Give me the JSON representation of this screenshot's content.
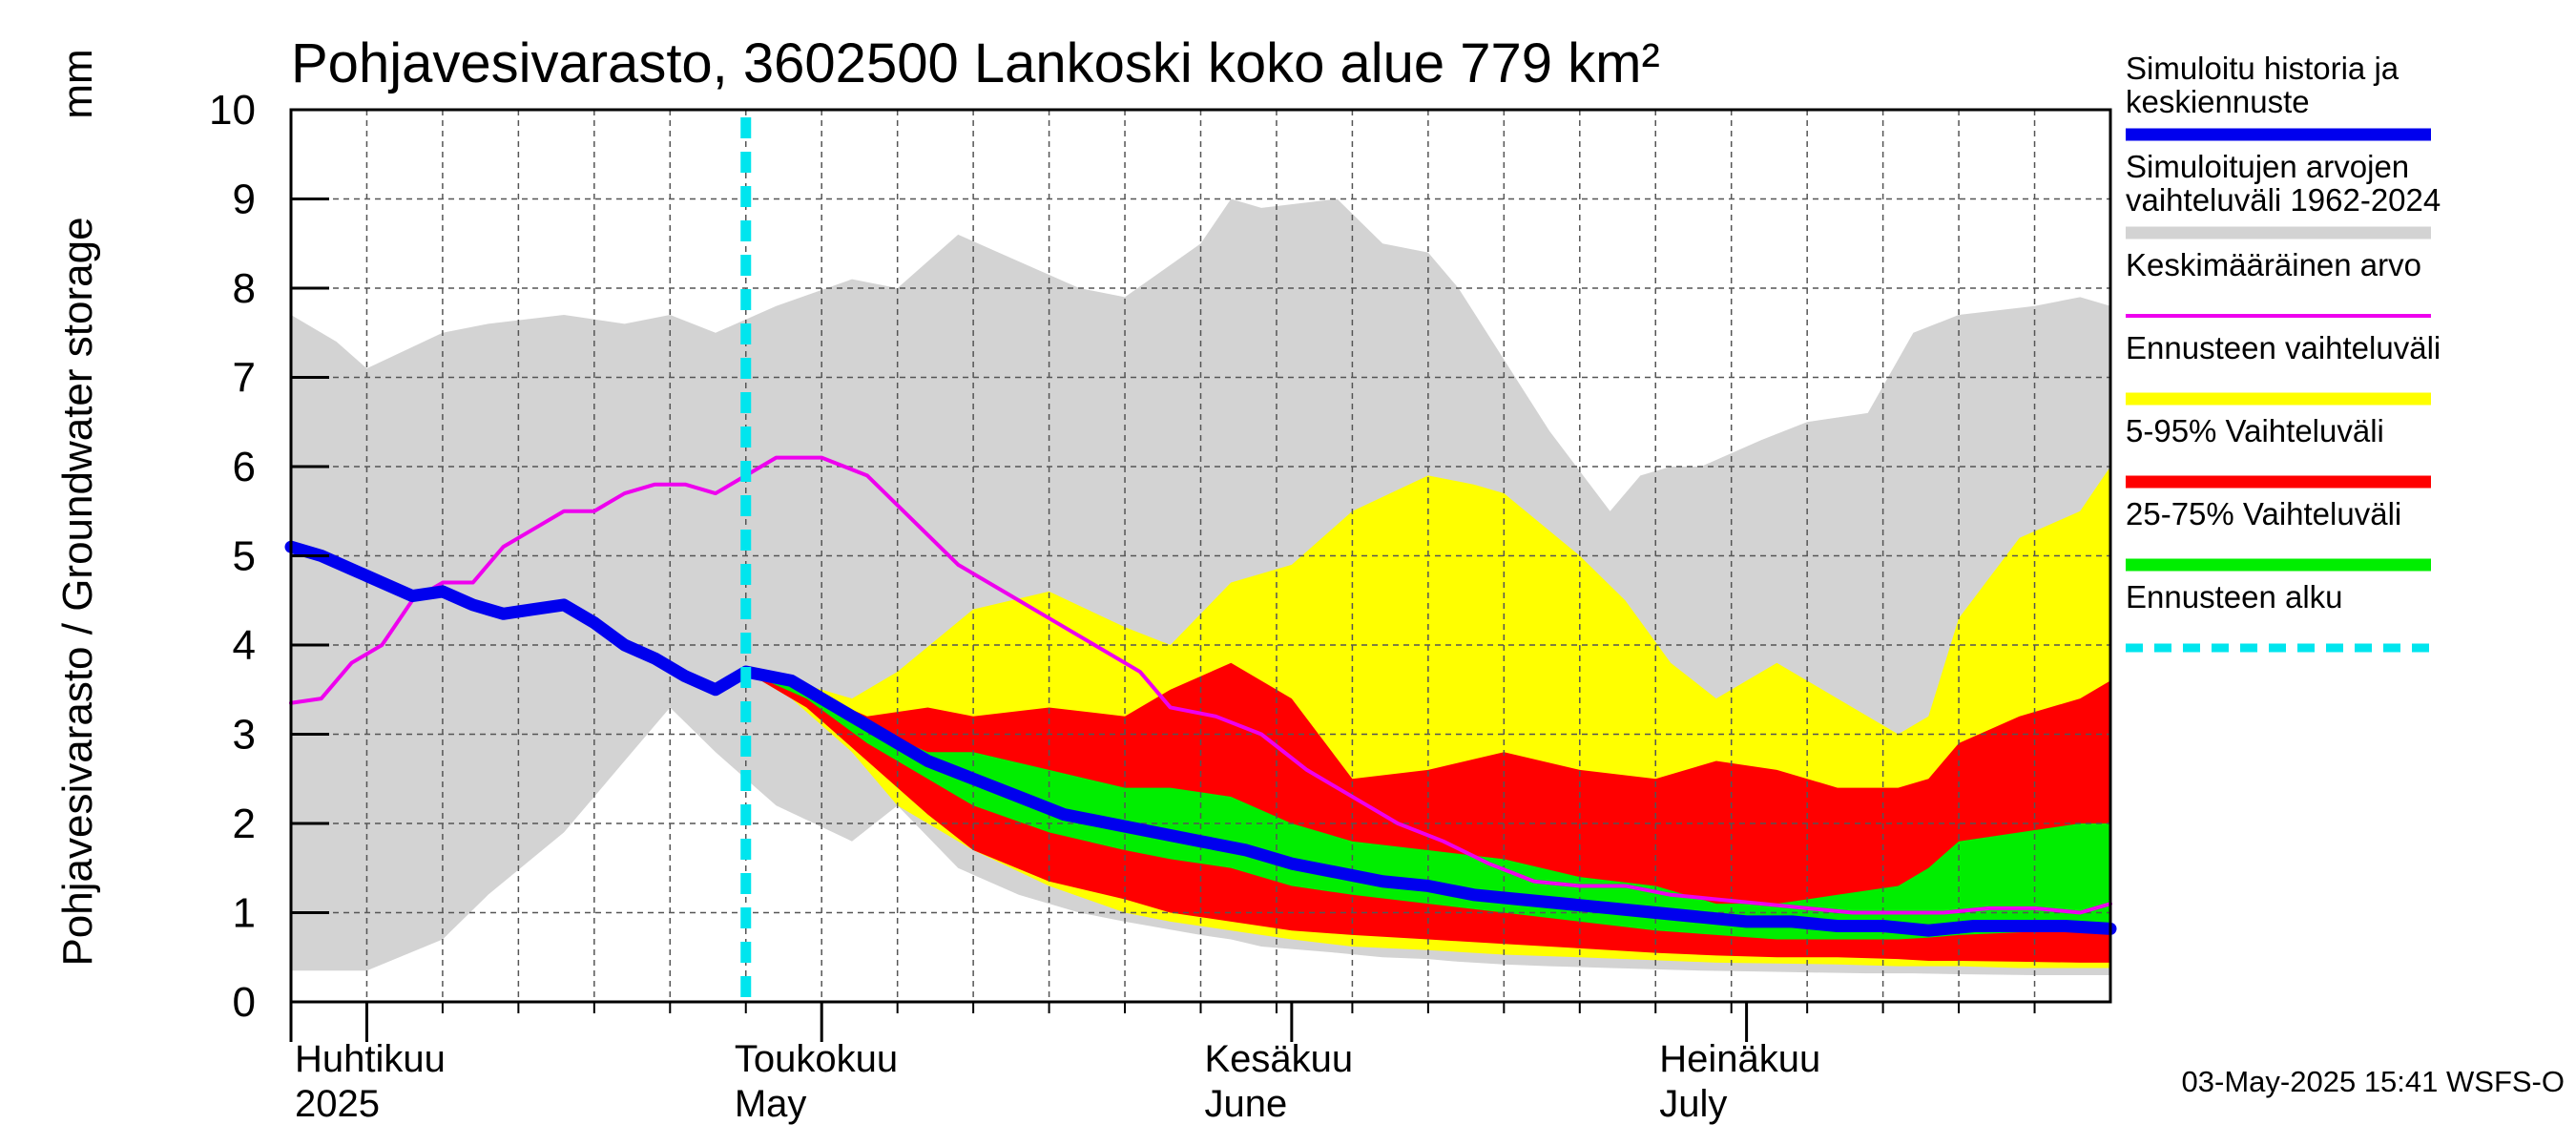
{
  "chart_data": {
    "type": "area",
    "title": "Pohjavesivarasto, 3602500 Lankoski koko alue 779 km²",
    "ylabel": "Pohjavesivarasto / Groundwater storage",
    "yunit": "mm",
    "ylim": [
      0,
      10
    ],
    "yticks": [
      0,
      1,
      2,
      3,
      4,
      5,
      6,
      7,
      8,
      9,
      10
    ],
    "grid": true,
    "x_start": "2025-03-27",
    "x_end": "2025-07-26",
    "x_unit": "day index from 2025-03-27",
    "xlim": [
      0,
      120
    ],
    "month_ticks": [
      5,
      35,
      66,
      96
    ],
    "month_labels": [
      {
        "day": 0,
        "fi": "Huhtikuu",
        "en": "2025"
      },
      {
        "day": 29,
        "fi": "Toukokuu",
        "en": "May"
      },
      {
        "day": 60,
        "fi": "Kesäkuu",
        "en": "June"
      },
      {
        "day": 90,
        "fi": "Heinäkuu",
        "en": "July"
      }
    ],
    "forecast_start_day": 30,
    "legend": [
      {
        "label": "Simuloitu historia ja keskiennuste",
        "line1": "Simuloitu historia ja",
        "line2": "keskiennuste",
        "color": "#0000ee",
        "style": "thick"
      },
      {
        "label": "Simuloitujen arvojen vaihteluväli 1962-2024",
        "line1": "Simuloitujen arvojen",
        "line2": "vaihteluväli 1962-2024",
        "color": "#d3d3d3",
        "style": "thick"
      },
      {
        "label": "Keskimääräinen arvo",
        "line1": "Keskimääräinen arvo",
        "line2": "",
        "color": "#ee00ee",
        "style": "thin"
      },
      {
        "label": "Ennusteen vaihteluväli",
        "line1": "Ennusteen vaihteluväli",
        "line2": "",
        "color": "#ffff00",
        "style": "thick"
      },
      {
        "label": "5-95% Vaihteluväli",
        "line1": "5-95% Vaihteluväli",
        "line2": "",
        "color": "#ff0000",
        "style": "thick"
      },
      {
        "label": "25-75% Vaihteluväli",
        "line1": "25-75% Vaihteluväli",
        "line2": "",
        "color": "#00ee00",
        "style": "thick"
      },
      {
        "label": "Ennusteen alku",
        "line1": "Ennusteen alku",
        "line2": "",
        "color": "#00e5ee",
        "style": "dashed"
      }
    ],
    "series": [
      {
        "name": "Simuloitujen arvojen vaihteluväli 1962-2024",
        "kind": "band",
        "color": "#d3d3d3",
        "x": [
          0,
          3,
          5,
          10,
          13,
          18,
          22,
          25,
          28,
          32,
          37,
          40,
          44,
          48,
          52,
          55,
          60,
          62,
          64,
          69,
          72,
          75,
          77,
          80,
          83,
          87,
          89,
          91,
          93,
          97,
          100,
          104,
          107,
          110,
          115,
          118,
          120
        ],
        "upper": [
          7.7,
          7.4,
          7.1,
          7.5,
          7.6,
          7.7,
          7.6,
          7.7,
          7.5,
          7.8,
          8.1,
          8.0,
          8.6,
          8.3,
          8.0,
          7.9,
          8.5,
          9.0,
          8.9,
          9.0,
          8.5,
          8.4,
          8.0,
          7.2,
          6.4,
          5.5,
          5.9,
          6.0,
          6.0,
          6.3,
          6.5,
          6.6,
          7.5,
          7.7,
          7.8,
          7.9,
          7.8
        ],
        "lower": [
          0.35,
          0.35,
          0.35,
          0.7,
          1.2,
          1.9,
          2.7,
          3.3,
          2.8,
          2.2,
          1.8,
          2.2,
          1.5,
          1.2,
          1.0,
          0.9,
          0.75,
          0.7,
          0.62,
          0.55,
          0.5,
          0.48,
          0.45,
          0.42,
          0.4,
          0.38,
          0.37,
          0.36,
          0.35,
          0.34,
          0.33,
          0.32,
          0.32,
          0.31,
          0.3,
          0.3,
          0.3
        ]
      },
      {
        "name": "Ennusteen vaihteluväli",
        "kind": "band",
        "color": "#ffff00",
        "x": [
          30,
          33,
          37,
          40,
          45,
          50,
          55,
          58,
          62,
          66,
          70,
          75,
          78,
          80,
          85,
          88,
          91,
          94,
          98,
          102,
          106,
          108,
          110,
          114,
          118,
          120
        ],
        "upper": [
          3.7,
          3.6,
          3.4,
          3.7,
          4.4,
          4.6,
          4.2,
          4.0,
          4.7,
          4.9,
          5.5,
          5.9,
          5.8,
          5.7,
          5.0,
          4.5,
          3.8,
          3.4,
          3.8,
          3.4,
          3.0,
          3.2,
          4.3,
          5.2,
          5.5,
          6.0
        ],
        "lower": [
          3.7,
          3.4,
          2.8,
          2.2,
          1.7,
          1.3,
          1.0,
          0.9,
          0.8,
          0.7,
          0.62,
          0.58,
          0.55,
          0.53,
          0.5,
          0.48,
          0.46,
          0.44,
          0.43,
          0.42,
          0.4,
          0.4,
          0.4,
          0.38,
          0.38,
          0.38
        ]
      },
      {
        "name": "5-95% Vaihteluväli",
        "kind": "band",
        "color": "#ff0000",
        "x": [
          30,
          34,
          38,
          42,
          45,
          50,
          55,
          58,
          62,
          66,
          70,
          75,
          80,
          85,
          90,
          94,
          98,
          102,
          106,
          108,
          110,
          114,
          118,
          120
        ],
        "upper": [
          3.7,
          3.5,
          3.2,
          3.3,
          3.2,
          3.3,
          3.2,
          3.5,
          3.8,
          3.4,
          2.5,
          2.6,
          2.8,
          2.6,
          2.5,
          2.7,
          2.6,
          2.4,
          2.4,
          2.5,
          2.9,
          3.2,
          3.4,
          3.6
        ],
        "lower": [
          3.7,
          3.3,
          2.7,
          2.1,
          1.7,
          1.35,
          1.15,
          1.0,
          0.9,
          0.8,
          0.75,
          0.7,
          0.65,
          0.6,
          0.55,
          0.52,
          0.5,
          0.5,
          0.48,
          0.46,
          0.46,
          0.45,
          0.44,
          0.44
        ]
      },
      {
        "name": "25-75% Vaihteluväli",
        "kind": "band",
        "color": "#00ee00",
        "x": [
          30,
          34,
          38,
          42,
          45,
          50,
          55,
          58,
          62,
          66,
          70,
          75,
          80,
          85,
          90,
          94,
          98,
          102,
          106,
          108,
          110,
          114,
          118,
          120
        ],
        "upper": [
          3.7,
          3.5,
          3.1,
          2.8,
          2.8,
          2.6,
          2.4,
          2.4,
          2.3,
          2.0,
          1.8,
          1.7,
          1.6,
          1.4,
          1.3,
          1.1,
          1.1,
          1.2,
          1.3,
          1.5,
          1.8,
          1.9,
          2.0,
          2.0
        ],
        "lower": [
          3.7,
          3.4,
          2.9,
          2.5,
          2.2,
          1.9,
          1.7,
          1.6,
          1.5,
          1.3,
          1.2,
          1.1,
          1.0,
          0.9,
          0.8,
          0.75,
          0.7,
          0.7,
          0.7,
          0.72,
          0.75,
          0.78,
          0.8,
          0.8
        ]
      },
      {
        "name": "Keskimääräinen arvo",
        "kind": "line",
        "color": "#ee00ee",
        "x": [
          0,
          2,
          4,
          6,
          8,
          10,
          12,
          14,
          16,
          18,
          20,
          22,
          24,
          26,
          28,
          30,
          32,
          35,
          38,
          41,
          44,
          47,
          50,
          53,
          56,
          58,
          61,
          64,
          67,
          70,
          73,
          76,
          79,
          82,
          85,
          88,
          91,
          94,
          97,
          100,
          103,
          106,
          109,
          112,
          115,
          118,
          120
        ],
        "y": [
          3.35,
          3.4,
          3.8,
          4.0,
          4.5,
          4.7,
          4.7,
          5.1,
          5.3,
          5.5,
          5.5,
          5.7,
          5.8,
          5.8,
          5.7,
          5.9,
          6.1,
          6.1,
          5.9,
          5.4,
          4.9,
          4.6,
          4.3,
          4.0,
          3.7,
          3.3,
          3.2,
          3.0,
          2.6,
          2.3,
          2.0,
          1.8,
          1.55,
          1.35,
          1.3,
          1.3,
          1.2,
          1.15,
          1.1,
          1.05,
          1.0,
          1.0,
          1.0,
          1.05,
          1.05,
          1.0,
          1.1
        ]
      },
      {
        "name": "Simuloitu historia ja keskiennuste",
        "kind": "line",
        "color": "#0000ee",
        "x": [
          0,
          2,
          4,
          6,
          8,
          10,
          12,
          14,
          16,
          18,
          20,
          22,
          24,
          26,
          28,
          30,
          33,
          36,
          39,
          42,
          45,
          48,
          51,
          54,
          57,
          60,
          63,
          66,
          69,
          72,
          75,
          78,
          81,
          84,
          87,
          90,
          93,
          96,
          99,
          102,
          105,
          108,
          111,
          114,
          117,
          120
        ],
        "y": [
          5.1,
          5.0,
          4.85,
          4.7,
          4.55,
          4.6,
          4.45,
          4.35,
          4.4,
          4.45,
          4.25,
          4.0,
          3.85,
          3.65,
          3.5,
          3.7,
          3.6,
          3.3,
          3.0,
          2.7,
          2.5,
          2.3,
          2.1,
          2.0,
          1.9,
          1.8,
          1.7,
          1.55,
          1.45,
          1.35,
          1.3,
          1.2,
          1.15,
          1.1,
          1.05,
          1.0,
          0.95,
          0.9,
          0.9,
          0.85,
          0.85,
          0.8,
          0.85,
          0.85,
          0.85,
          0.82
        ]
      }
    ],
    "timestamp": "03-May-2025 15:41 WSFS-O"
  }
}
